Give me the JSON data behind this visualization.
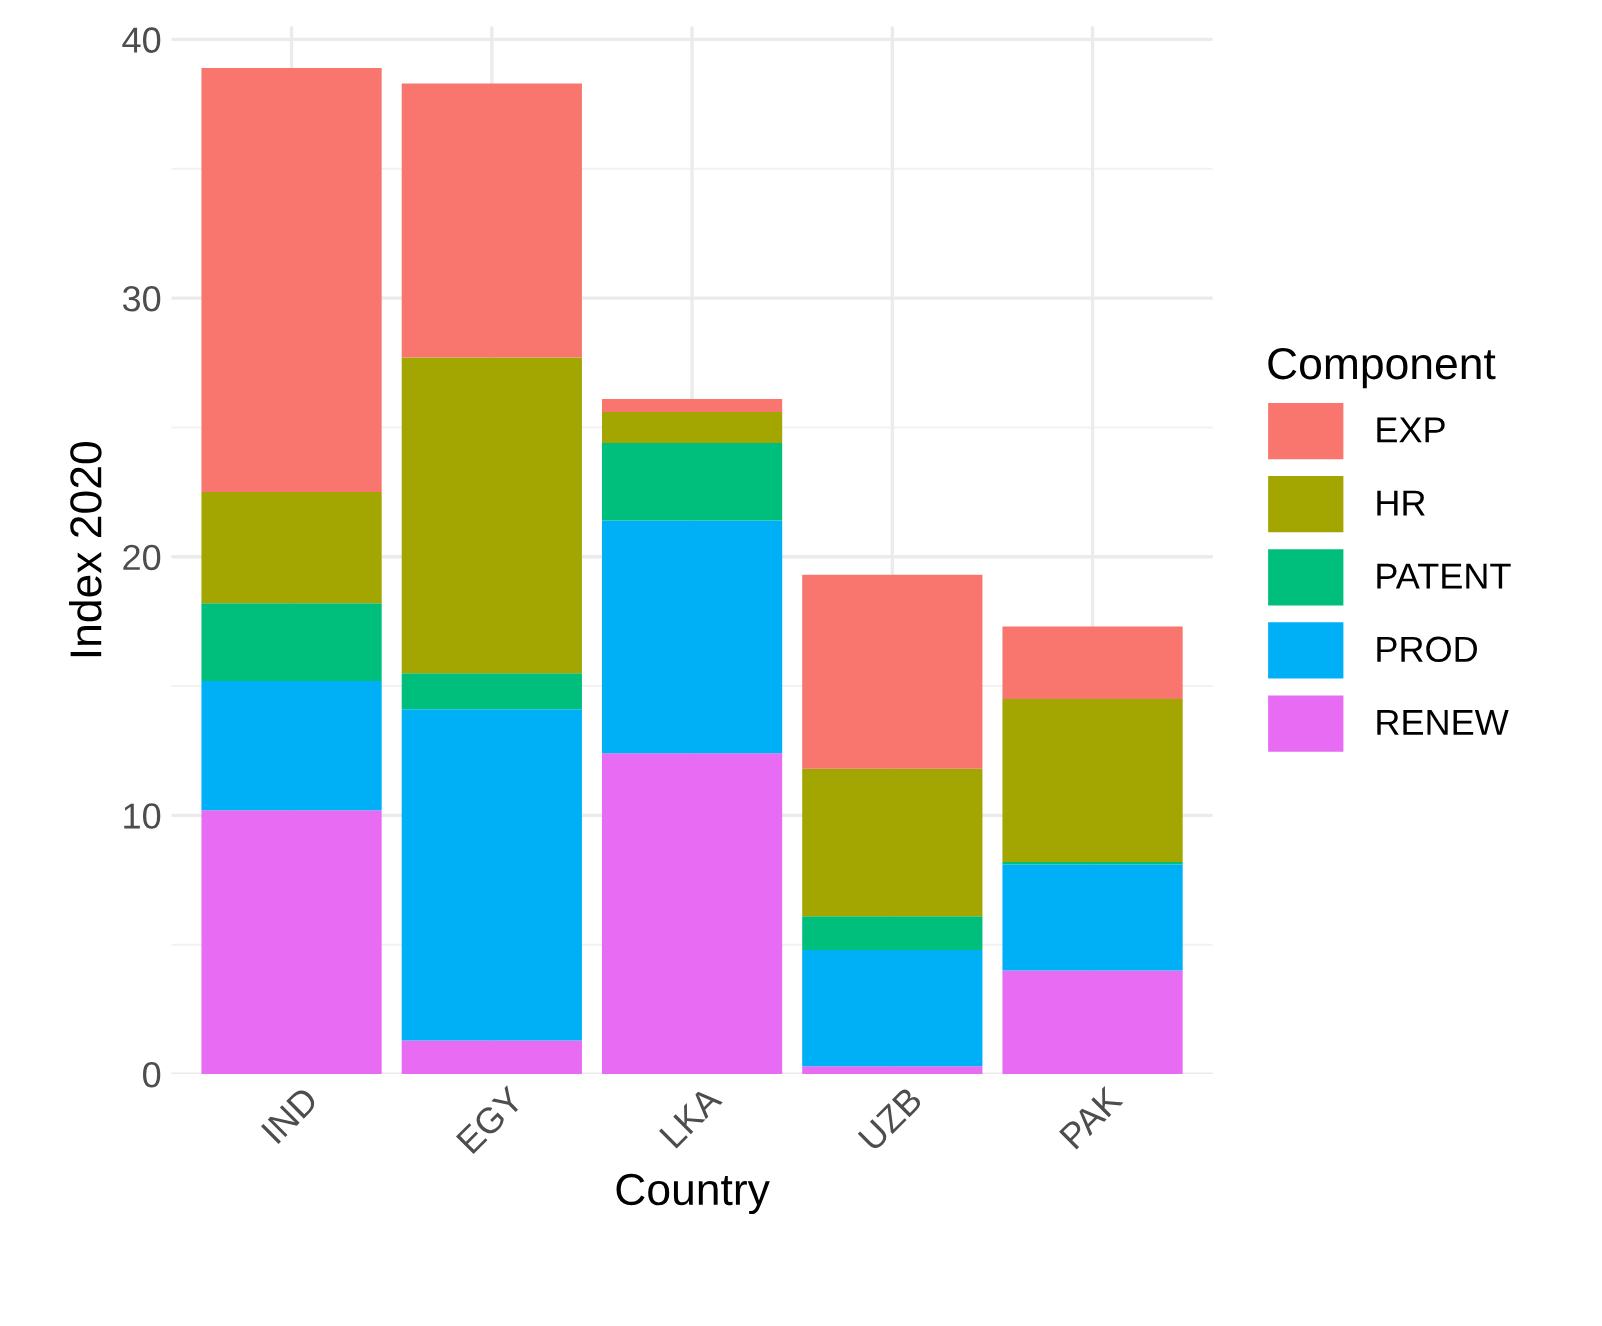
{
  "chart_data": {
    "type": "bar",
    "stacked": true,
    "xlabel": "Country",
    "ylabel": "Index 2020",
    "legend_title": "Component",
    "legend": "right",
    "grid": true,
    "categories": [
      "IND",
      "EGY",
      "LKA",
      "UZB",
      "PAK"
    ],
    "ylim": [
      0,
      40.5
    ],
    "yticks": [
      0,
      10,
      20,
      30,
      40
    ],
    "series": [
      {
        "name": "RENEW",
        "color": "#e76bf3",
        "values": [
          10.2,
          1.3,
          12.4,
          0.3,
          4.0
        ]
      },
      {
        "name": "PROD",
        "color": "#00b0f6",
        "values": [
          5.0,
          12.8,
          9.0,
          4.5,
          4.1
        ]
      },
      {
        "name": "PATENT",
        "color": "#00bf7d",
        "values": [
          3.0,
          1.4,
          3.0,
          1.3,
          0.1
        ]
      },
      {
        "name": "HR",
        "color": "#a3a500",
        "values": [
          4.3,
          12.2,
          1.2,
          5.7,
          6.3
        ]
      },
      {
        "name": "EXP",
        "color": "#f8766d",
        "values": [
          16.4,
          10.6,
          0.5,
          7.5,
          2.8
        ]
      }
    ]
  }
}
